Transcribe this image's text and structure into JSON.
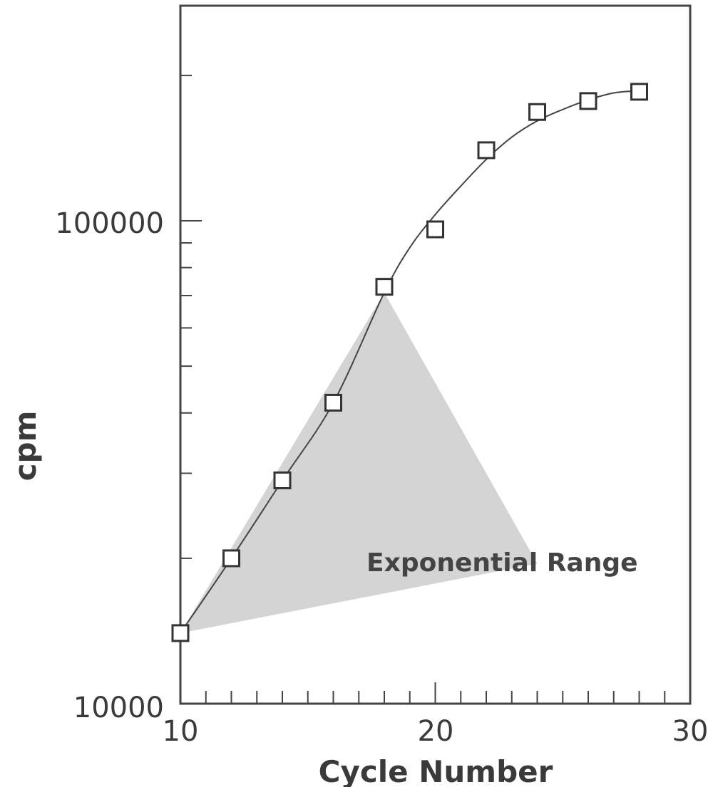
{
  "chart_data": {
    "type": "scatter",
    "xlabel": "Cycle Number",
    "ylabel": "cpm",
    "y_scale": "log",
    "xlim": [
      10,
      30
    ],
    "ylim": [
      10000,
      300000
    ],
    "x_ticks": [
      "10",
      "20",
      "30"
    ],
    "y_ticks": [
      "100000",
      "10000"
    ],
    "grid": false,
    "series": [
      {
        "marker": "open-square",
        "x": [
          10,
          12,
          14,
          16,
          18,
          20,
          22,
          24,
          26,
          28
        ],
        "y": [
          14000,
          20000,
          29000,
          42000,
          73000,
          96000,
          140000,
          168000,
          177000,
          185000
        ]
      }
    ],
    "fit_curve": {
      "x": [
        10,
        12,
        14,
        16,
        18,
        19,
        20,
        21,
        22,
        23,
        24,
        25,
        26,
        27,
        28
      ],
      "y": [
        14000,
        20000,
        29000,
        42000,
        71000,
        88000,
        103000,
        118000,
        134000,
        149000,
        161000,
        170000,
        178000,
        184000,
        186000
      ]
    },
    "shaded_region": {
      "label": "Exponential Range",
      "vertices": [
        [
          10,
          14000
        ],
        [
          18,
          71000
        ],
        [
          24,
          19500
        ]
      ]
    },
    "colors": {
      "shade": "#d4d4d4",
      "line": "#444444",
      "axis": "#444444"
    }
  }
}
